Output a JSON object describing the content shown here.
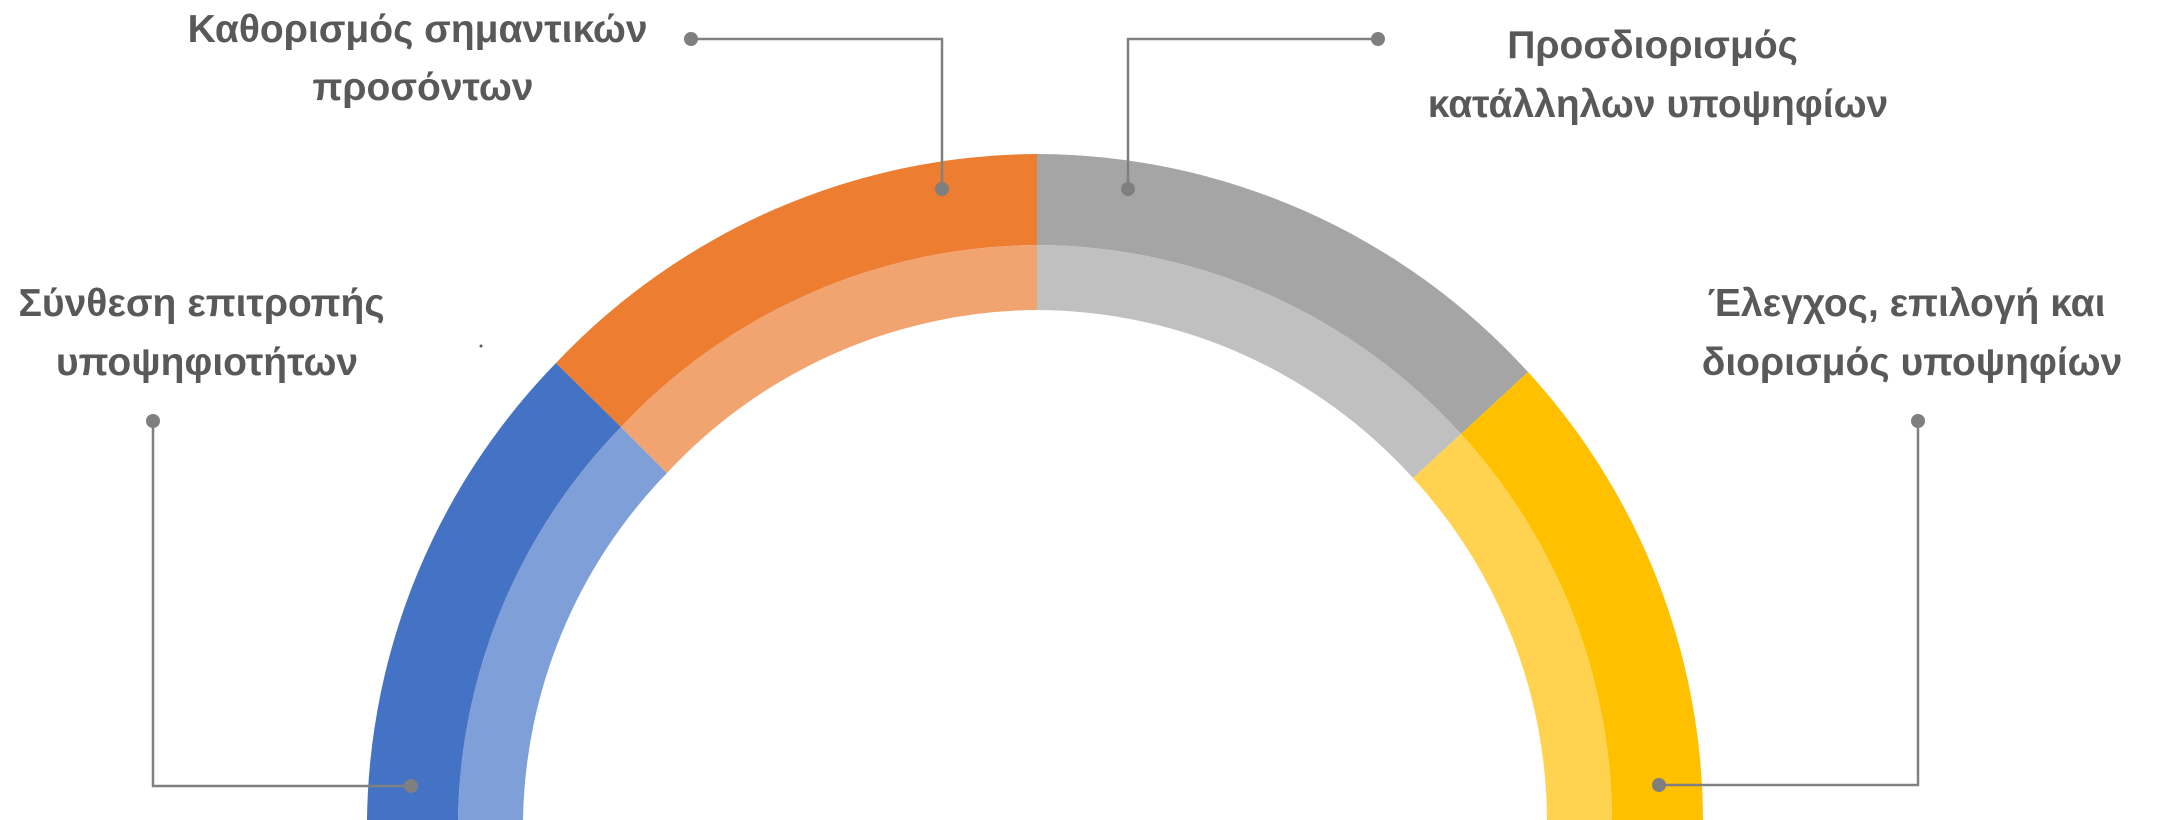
{
  "stages": [
    {
      "id": "committee",
      "label_lines": [
        "Σύνθεση επιτροπής",
        "υποψηφιοτήτων"
      ],
      "outer_color": "#4472C4",
      "inner_color": "#7F9FD8"
    },
    {
      "id": "qualifications",
      "label_lines": [
        "Καθορισμός σημαντικών",
        "προσόντων"
      ],
      "outer_color": "#ED7D31",
      "inner_color": "#F2A470"
    },
    {
      "id": "identification",
      "label_lines": [
        "Προσδιορισμός",
        "κατάλληλων υποψηφίων"
      ],
      "outer_color": "#A5A5A5",
      "inner_color": "#C0C0C0"
    },
    {
      "id": "selection",
      "label_lines": [
        "Έλεγχος, επιλογή και",
        "διορισμός υποψηφίων"
      ],
      "outer_color": "#FFC000",
      "inner_color": "#FFD34F"
    }
  ]
}
